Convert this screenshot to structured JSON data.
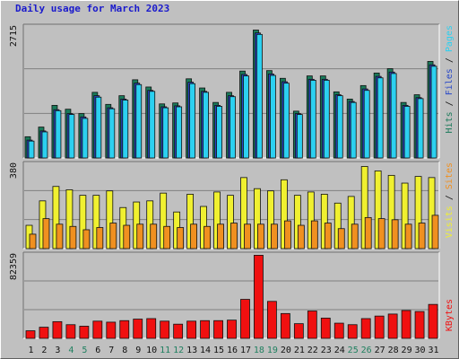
{
  "title": "Daily usage for March 2023",
  "colors": {
    "hits": "#1a7a5a",
    "files": "#2848c8",
    "pages": "#2cd0f0",
    "visits": "#f0f030",
    "sites": "#f09020",
    "kbytes": "#f01010",
    "weekend_label": "#208060",
    "weekday_label": "#101010"
  },
  "chart_data": [
    {
      "type": "bar",
      "panel": "hits-files-pages",
      "axis_label_top": "2715",
      "right_label_parts": [
        "Pages",
        "Files",
        "Hits"
      ],
      "ylim": [
        0,
        2715
      ],
      "categories": [
        "1",
        "2",
        "3",
        "4",
        "5",
        "6",
        "7",
        "8",
        "9",
        "10",
        "11",
        "12",
        "13",
        "14",
        "15",
        "16",
        "17",
        "18",
        "19",
        "20",
        "21",
        "22",
        "23",
        "24",
        "25",
        "26",
        "27",
        "28",
        "29",
        "30",
        "31"
      ],
      "series": [
        {
          "name": "Hits",
          "values": [
            440,
            640,
            1090,
            1010,
            920,
            1360,
            1110,
            1290,
            1620,
            1470,
            1120,
            1140,
            1640,
            1450,
            1150,
            1360,
            1800,
            2650,
            1810,
            1650,
            970,
            1700,
            1700,
            1370,
            1220,
            1500,
            1760,
            1850,
            1150,
            1310,
            2000
          ]
        },
        {
          "name": "Files",
          "values": [
            370,
            560,
            1000,
            920,
            850,
            1290,
            1040,
            1220,
            1550,
            1400,
            1060,
            1080,
            1570,
            1380,
            1090,
            1290,
            1730,
            2590,
            1740,
            1580,
            920,
            1630,
            1630,
            1310,
            1170,
            1430,
            1690,
            1780,
            1090,
            1250,
            1930
          ]
        },
        {
          "name": "Pages",
          "values": [
            350,
            540,
            980,
            900,
            820,
            1260,
            1020,
            1200,
            1520,
            1380,
            1040,
            1060,
            1540,
            1360,
            1070,
            1270,
            1700,
            2560,
            1710,
            1550,
            900,
            1610,
            1610,
            1290,
            1150,
            1400,
            1660,
            1750,
            1070,
            1230,
            1900
          ]
        }
      ]
    },
    {
      "type": "bar",
      "panel": "visits-sites",
      "axis_label_top": "380",
      "right_label_parts": [
        "Sites",
        "Visits"
      ],
      "ylim": [
        0,
        380
      ],
      "categories": [
        "1",
        "2",
        "3",
        "4",
        "5",
        "6",
        "7",
        "8",
        "9",
        "10",
        "11",
        "12",
        "13",
        "14",
        "15",
        "16",
        "17",
        "18",
        "19",
        "20",
        "21",
        "22",
        "23",
        "24",
        "25",
        "26",
        "27",
        "28",
        "29",
        "30",
        "31"
      ],
      "series": [
        {
          "name": "Visits",
          "values": [
            105,
            215,
            280,
            265,
            240,
            240,
            260,
            185,
            210,
            215,
            250,
            165,
            245,
            190,
            255,
            240,
            320,
            270,
            260,
            310,
            240,
            255,
            245,
            205,
            235,
            370,
            350,
            330,
            295,
            325,
            320
          ]
        },
        {
          "name": "Sites",
          "values": [
            65,
            135,
            110,
            100,
            85,
            95,
            115,
            105,
            110,
            110,
            100,
            95,
            110,
            100,
            110,
            115,
            110,
            110,
            110,
            125,
            105,
            125,
            115,
            90,
            110,
            140,
            135,
            130,
            110,
            115,
            150
          ]
        }
      ]
    },
    {
      "type": "bar",
      "panel": "kbytes",
      "axis_label_top": "82359",
      "right_label_parts": [
        "KBytes"
      ],
      "ylim": [
        0,
        82359
      ],
      "categories": [
        "1",
        "2",
        "3",
        "4",
        "5",
        "6",
        "7",
        "8",
        "9",
        "10",
        "11",
        "12",
        "13",
        "14",
        "15",
        "16",
        "17",
        "18",
        "19",
        "20",
        "21",
        "22",
        "23",
        "24",
        "25",
        "26",
        "27",
        "28",
        "29",
        "30",
        "31"
      ],
      "series": [
        {
          "name": "KBytes",
          "values": [
            7500,
            11000,
            16500,
            13500,
            12000,
            17000,
            16000,
            17500,
            19000,
            19500,
            17000,
            14000,
            17000,
            17500,
            17500,
            18000,
            38500,
            82000,
            36500,
            24500,
            14500,
            27000,
            20000,
            15000,
            13500,
            19500,
            22000,
            24000,
            27500,
            26500,
            33500
          ]
        }
      ]
    }
  ]
}
